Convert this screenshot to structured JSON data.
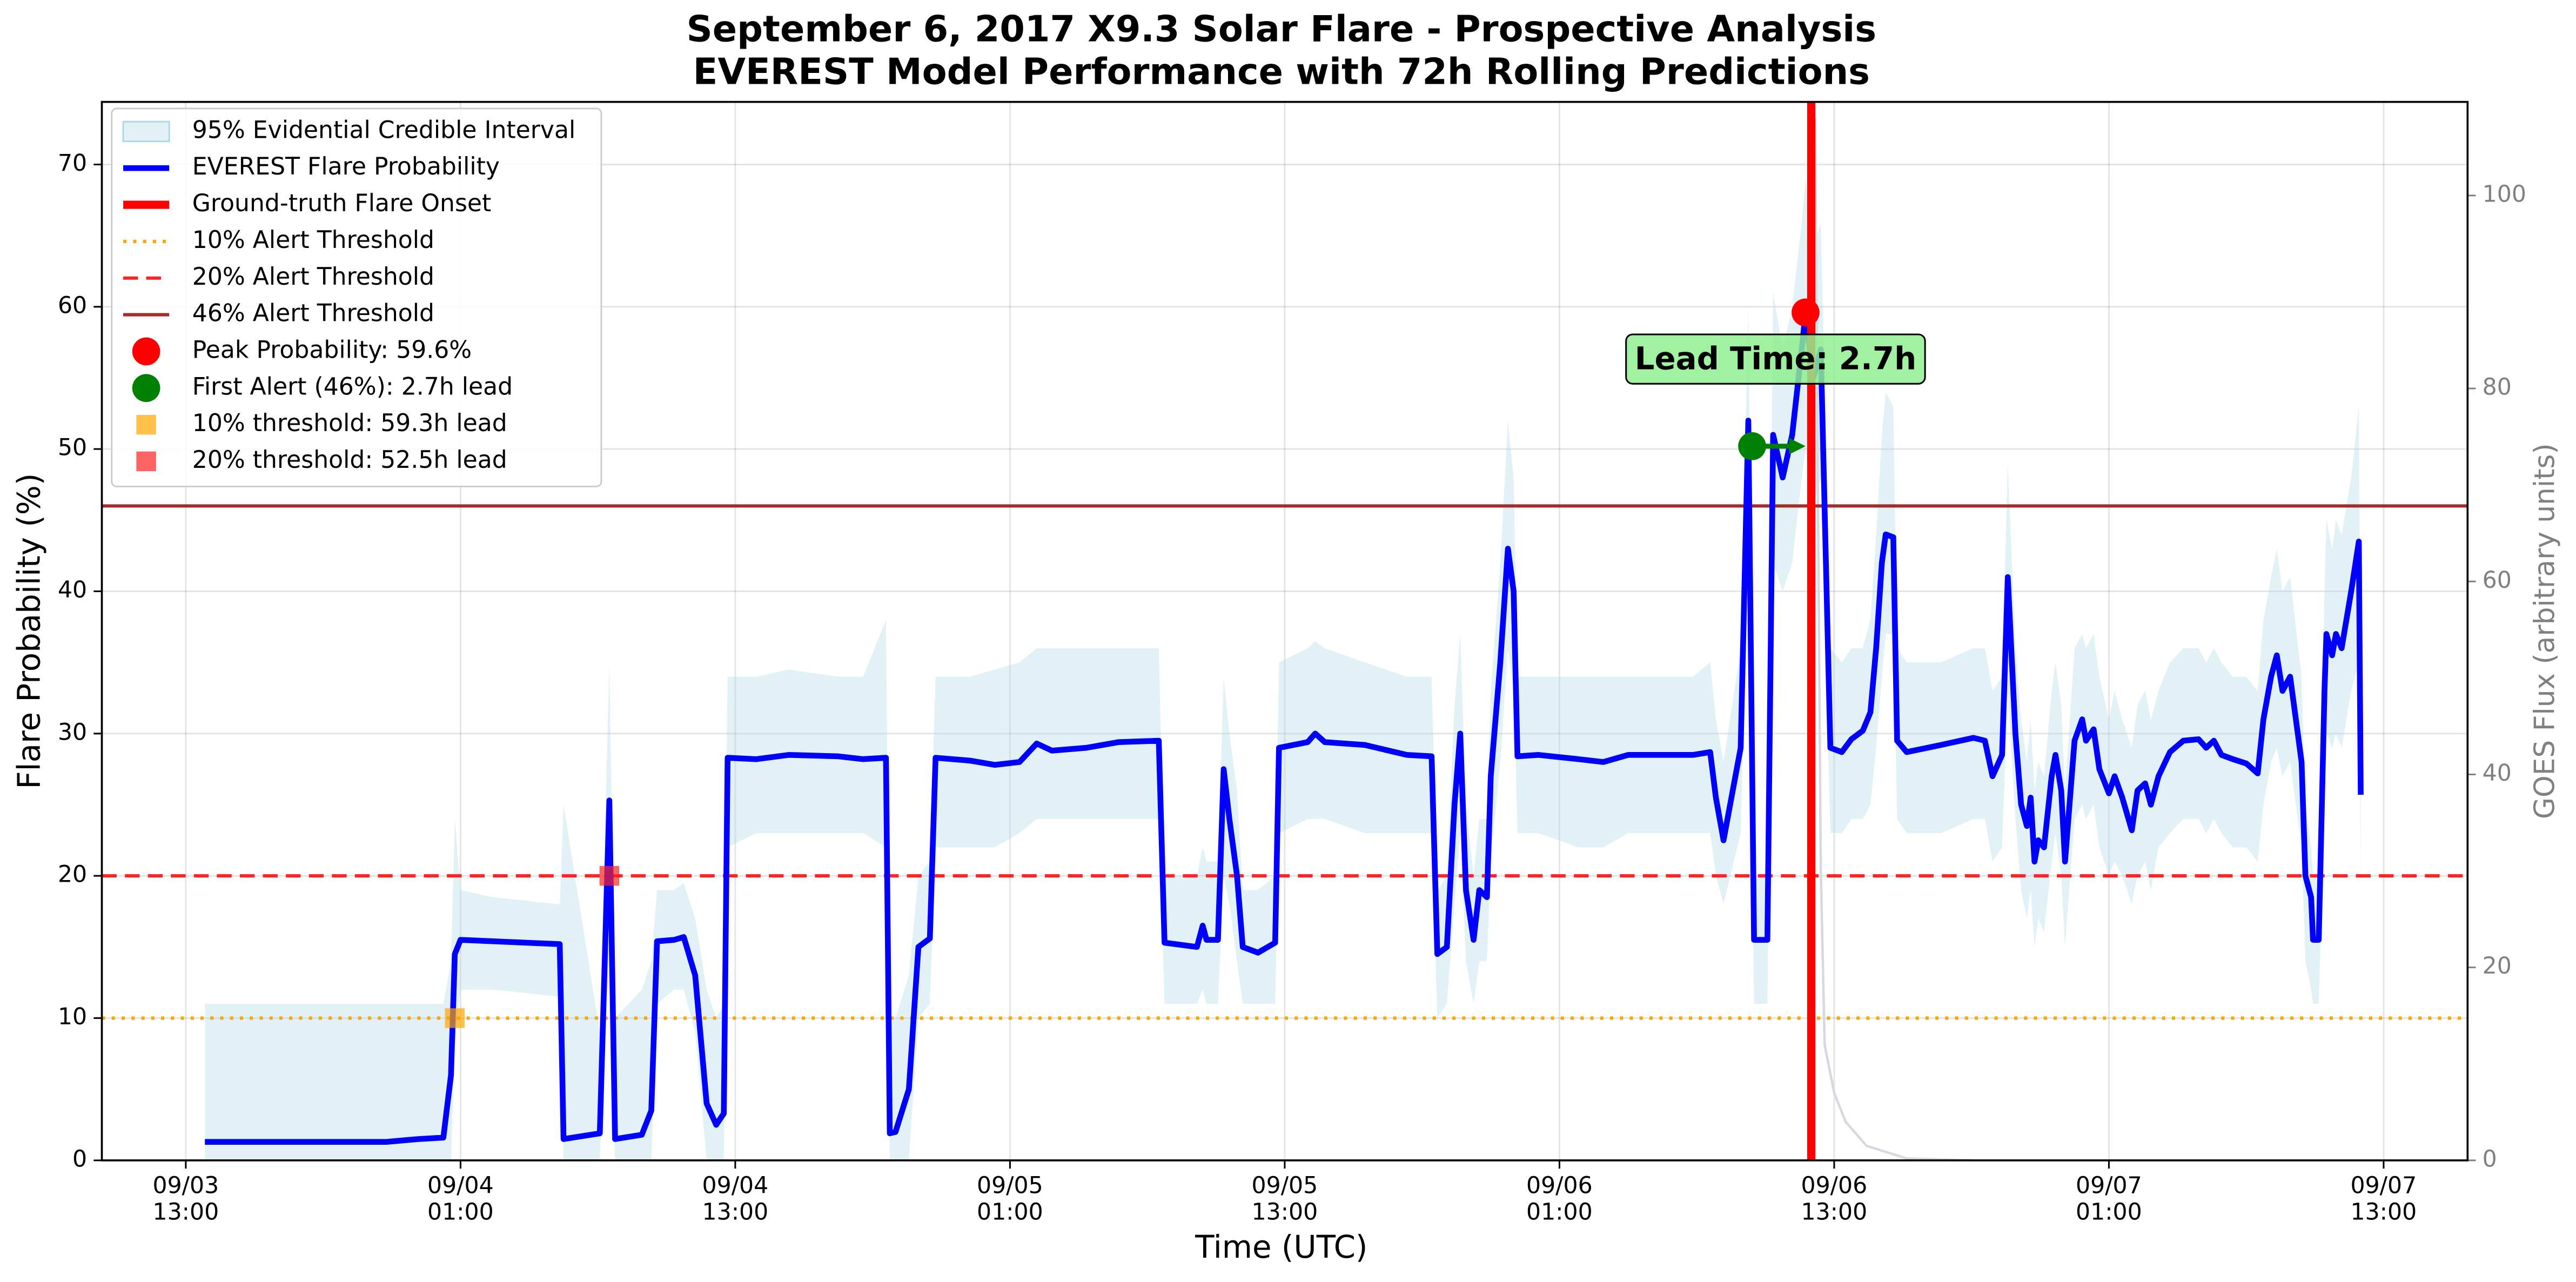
{
  "chart_data": {
    "type": "line",
    "title": "September 6, 2017 X9.3 Solar Flare - Prospective Analysis",
    "subtitle": "EVEREST Model Performance with 72h Rolling Predictions",
    "x_label": "Time (UTC)",
    "y_label": "Flare Probability (%)",
    "y2_label": "GOES Flux (arbitrary units)",
    "xlim": [
      "09/03 09:20",
      "09/07 16:40"
    ],
    "xticks": [
      {
        "value": "09/03 13:00",
        "label": "09/03\n13:00"
      },
      {
        "value": "09/04 01:00",
        "label": "09/04\n01:00"
      },
      {
        "value": "09/04 13:00",
        "label": "09/04\n13:00"
      },
      {
        "value": "09/05 01:00",
        "label": "09/05\n01:00"
      },
      {
        "value": "09/05 13:00",
        "label": "09/05\n13:00"
      },
      {
        "value": "09/06 01:00",
        "label": "09/06\n01:00"
      },
      {
        "value": "09/06 13:00",
        "label": "09/06\n13:00"
      },
      {
        "value": "09/07 01:00",
        "label": "09/07\n01:00"
      },
      {
        "value": "09/07 13:00",
        "label": "09/07\n13:00"
      }
    ],
    "ylim": [
      0,
      74.4
    ],
    "yticks": [
      0,
      10,
      20,
      30,
      40,
      50,
      60,
      70
    ],
    "y2lim": [
      0,
      109.7
    ],
    "y2ticks": [
      0,
      20,
      40,
      60,
      80,
      100
    ],
    "grid": true,
    "legend": "upper left",
    "x": [
      "09/03 13:50",
      "09/03 21:45",
      "09/03 23:10",
      "09/04 00:15",
      "09/04 00:35",
      "09/04 00:45",
      "09/04 01:00",
      "09/04 02:25",
      "09/04 05:20",
      "09/04 05:30",
      "09/04 07:05",
      "09/04 07:30",
      "09/04 07:45",
      "09/04 08:55",
      "09/04 09:20",
      "09/04 09:35",
      "09/04 10:20",
      "09/04 10:45",
      "09/04 11:15",
      "09/04 11:45",
      "09/04 12:10",
      "09/04 12:30",
      "09/04 12:40",
      "09/04 13:55",
      "09/04 15:20",
      "09/04 17:30",
      "09/04 18:35",
      "09/04 19:35",
      "09/04 19:45",
      "09/04 20:00",
      "09/04 20:35",
      "09/04 21:00",
      "09/04 21:30",
      "09/04 21:45",
      "09/04 23:15",
      "09/05 00:20",
      "09/05 01:25",
      "09/05 02:10",
      "09/05 02:50",
      "09/05 04:20",
      "09/05 05:45",
      "09/05 07:30",
      "09/05 07:45",
      "09/05 09:10",
      "09/05 09:25",
      "09/05 09:35",
      "09/05 10:05",
      "09/05 10:20",
      "09/05 10:35",
      "09/05 10:55",
      "09/05 11:10",
      "09/05 11:50",
      "09/05 12:35",
      "09/05 12:45",
      "09/05 14:00",
      "09/05 14:20",
      "09/05 14:45",
      "09/05 16:30",
      "09/05 18:20",
      "09/05 19:25",
      "09/05 19:40",
      "09/05 20:05",
      "09/05 20:25",
      "09/05 20:40",
      "09/05 20:55",
      "09/05 21:15",
      "09/05 21:30",
      "09/05 21:50",
      "09/05 22:00",
      "09/05 22:25",
      "09/05 22:45",
      "09/05 23:00",
      "09/05 23:10",
      "09/06 00:05",
      "09/06 01:50",
      "09/06 02:55",
      "09/06 04:00",
      "09/06 05:25",
      "09/06 06:50",
      "09/06 07:35",
      "09/06 07:50",
      "09/06 08:10",
      "09/06 08:55",
      "09/06 09:15",
      "09/06 09:30",
      "09/06 10:05",
      "09/06 10:20",
      "09/06 10:45",
      "09/06 11:10",
      "09/06 11:35",
      "09/06 11:45",
      "09/06 12:05",
      "09/06 12:25",
      "09/06 12:50",
      "09/06 13:20",
      "09/06 13:45",
      "09/06 14:15",
      "09/06 14:35",
      "09/06 14:50",
      "09/06 15:05",
      "09/06 15:15",
      "09/06 15:35",
      "09/06 15:45",
      "09/06 16:10",
      "09/06 17:40",
      "09/06 19:05",
      "09/06 19:35",
      "09/06 19:55",
      "09/06 20:20",
      "09/06 20:35",
      "09/06 20:55",
      "09/06 21:10",
      "09/06 21:25",
      "09/06 21:35",
      "09/06 21:45",
      "09/06 21:55",
      "09/06 22:10",
      "09/06 22:30",
      "09/06 22:40",
      "09/06 22:55",
      "09/06 23:05",
      "09/06 23:30",
      "09/06 23:50",
      "09/07 00:00",
      "09/07 00:20",
      "09/07 00:35",
      "09/07 01:00",
      "09/07 01:15",
      "09/07 01:35",
      "09/07 02:00",
      "09/07 02:15",
      "09/07 02:35",
      "09/07 02:50",
      "09/07 03:10",
      "09/07 03:40",
      "09/07 04:15",
      "09/07 04:55",
      "09/07 05:15",
      "09/07 05:35",
      "09/07 05:55",
      "09/07 06:25",
      "09/07 07:00",
      "09/07 07:30",
      "09/07 07:45",
      "09/07 08:05",
      "09/07 08:20",
      "09/07 08:35",
      "09/07 08:55",
      "09/07 09:25",
      "09/07 09:35",
      "09/07 09:50",
      "09/07 09:55",
      "09/07 10:10",
      "09/07 10:25",
      "09/07 10:30",
      "09/07 10:45",
      "09/07 10:55",
      "09/07 11:10",
      "09/07 11:35",
      "09/07 11:55",
      "09/07 12:00"
    ],
    "series": [
      {
        "name": "EVEREST Flare Probability",
        "color": "#0000ff",
        "values": [
          1.3,
          1.3,
          1.5,
          1.6,
          6,
          14.5,
          15.5,
          15.4,
          15.2,
          1.5,
          1.9,
          25.3,
          1.5,
          1.8,
          3.5,
          15.4,
          15.5,
          15.7,
          13,
          4,
          2.5,
          3.3,
          28.3,
          28.2,
          28.5,
          28.4,
          28.2,
          28.3,
          1.9,
          2,
          5,
          15,
          15.6,
          28.3,
          28.1,
          27.8,
          28,
          29.3,
          28.8,
          29,
          29.4,
          29.5,
          15.3,
          15,
          16.5,
          15.5,
          15.5,
          27.5,
          24,
          20,
          15,
          14.6,
          15.3,
          29,
          29.4,
          30,
          29.4,
          29.2,
          28.5,
          28.4,
          14.5,
          15,
          25,
          30,
          19,
          15.5,
          19,
          18.5,
          27,
          35,
          43,
          40,
          28.4,
          28.5,
          28.2,
          28,
          28.5,
          28.5,
          28.5,
          28.7,
          25.5,
          22.5,
          29,
          52,
          15.5,
          15.5,
          51,
          48,
          51,
          57,
          59.6,
          55,
          57,
          29,
          28.7,
          29.6,
          30.2,
          31.5,
          36,
          42,
          44,
          43.8,
          29.5,
          28.7,
          29.2,
          29.7,
          29.5,
          27,
          28.5,
          41,
          30,
          25,
          23.5,
          25.5,
          21,
          22.5,
          22,
          27,
          28.5,
          26,
          21,
          29.5,
          31,
          29.5,
          30.3,
          27.5,
          25.8,
          27,
          25.5,
          23.2,
          26,
          26.5,
          25,
          27,
          28.7,
          29.5,
          29.6,
          29,
          29.5,
          28.5,
          28.2,
          27.9,
          27.2,
          31,
          34,
          35.5,
          33,
          34,
          28,
          20,
          18.5,
          15.5,
          15.5,
          33,
          37,
          35.5,
          37,
          36,
          40,
          43.5,
          25.7
        ]
      }
    ],
    "band": {
      "name": "95% Evidential Credible Interval",
      "color": "#add8e6",
      "lower": [
        0,
        0,
        0,
        0,
        0,
        8,
        12,
        12,
        11.5,
        0,
        0,
        15,
        0,
        0,
        0,
        11,
        12,
        12,
        9,
        0,
        0,
        0,
        22,
        23,
        23,
        23,
        23,
        22,
        0,
        0,
        0,
        10,
        11,
        22,
        22,
        22,
        23,
        24,
        24,
        24,
        24,
        24,
        11,
        11,
        12,
        11,
        11,
        20,
        18,
        14,
        11,
        11,
        11,
        23,
        24,
        24,
        24,
        23,
        23,
        23,
        10,
        11,
        18,
        23,
        14,
        11,
        14,
        14,
        21,
        28,
        36,
        33,
        23,
        23,
        22,
        22,
        23,
        23,
        23,
        23,
        20,
        18,
        23,
        43,
        11,
        11,
        42,
        40,
        42,
        48,
        50,
        46,
        48,
        23,
        23,
        24,
        24,
        25,
        29,
        34,
        37,
        37,
        24,
        23,
        23,
        24,
        24,
        21,
        22,
        33,
        24,
        19,
        17,
        19,
        15,
        17,
        16,
        21,
        23,
        20,
        15,
        24,
        25,
        24,
        25,
        22,
        20,
        21,
        20,
        18,
        20,
        21,
        19,
        22,
        23,
        24,
        24,
        23,
        24,
        23,
        22,
        22,
        21,
        25,
        28,
        29,
        27,
        28,
        22,
        14,
        12,
        11,
        11,
        26,
        30,
        29,
        30,
        29,
        33,
        35,
        19
      ],
      "upper": [
        11,
        11,
        11,
        11,
        14,
        24,
        19,
        18.5,
        18,
        25,
        9,
        35,
        10,
        12,
        14,
        19,
        19,
        19.5,
        17,
        12,
        10,
        11,
        34,
        34,
        34.5,
        34,
        34,
        38,
        10,
        10,
        13,
        20,
        21,
        34,
        34,
        34.5,
        35,
        36,
        36,
        36,
        36,
        36,
        20,
        20,
        22,
        21,
        21,
        34,
        30,
        26,
        19,
        19,
        20,
        35,
        36,
        36.5,
        36,
        35,
        34,
        34,
        19,
        20,
        32,
        37,
        25,
        20,
        24,
        24,
        33,
        42,
        52,
        48,
        34,
        34,
        34,
        34,
        34,
        34,
        34,
        35,
        31,
        28,
        36,
        60,
        20,
        20,
        61,
        57,
        60,
        66,
        69,
        64,
        66,
        36,
        35,
        36,
        36,
        38,
        44,
        51,
        54,
        53,
        36,
        35,
        35,
        36,
        36,
        33,
        34,
        49,
        36,
        31,
        28,
        31,
        26,
        28,
        27,
        33,
        35,
        32,
        26,
        36,
        37,
        36,
        37,
        34,
        31,
        33,
        31,
        29,
        32,
        33,
        31,
        33,
        35,
        36,
        36,
        35,
        36,
        35,
        34,
        34,
        33,
        38,
        41,
        43,
        40,
        41,
        34,
        25,
        22,
        20,
        20,
        40,
        45,
        43,
        45,
        44,
        48,
        53,
        32
      ]
    },
    "goes_flux": {
      "color": "#d8d8e0",
      "axis": "y2",
      "x": [
        "09/06 12:10",
        "09/06 12:25",
        "09/06 12:35",
        "09/06 13:00",
        "09/06 13:30",
        "09/06 14:25",
        "09/06 16:10",
        "09/06 19:05"
      ],
      "values": [
        108,
        30,
        12,
        7,
        4,
        1.5,
        0.2,
        0
      ]
    },
    "onset": {
      "name": "Ground-truth Flare Onset",
      "x": "09/06 12:00",
      "color": "#ff0000"
    },
    "thresholds": [
      {
        "name": "10% Alert Threshold",
        "value": 10,
        "color": "#ffa500",
        "style": "dotted"
      },
      {
        "name": "20% Alert Threshold",
        "value": 20,
        "color": "#ff2222",
        "style": "dashed"
      },
      {
        "name": "46% Alert Threshold",
        "value": 46,
        "color": "#a52a2a",
        "style": "solid"
      }
    ],
    "points": [
      {
        "name": "Peak Probability: 59.6%",
        "x": "09/06 11:45",
        "y": 59.6,
        "color": "#ff0000",
        "shape": "circle"
      },
      {
        "name": "First Alert (46%): 2.7h lead",
        "x": "09/06 09:25",
        "y": 50.2,
        "color": "#008000",
        "shape": "circle"
      },
      {
        "name": "10% threshold: 59.3h lead",
        "x": "09/04 00:45",
        "y": 10,
        "color": "#ffa500",
        "shape": "square"
      },
      {
        "name": "20% threshold: 52.5h lead",
        "x": "09/04 07:30",
        "y": 20,
        "color": "#ff2222",
        "shape": "square"
      }
    ],
    "annotation": "Lead Time: 2.7h"
  }
}
